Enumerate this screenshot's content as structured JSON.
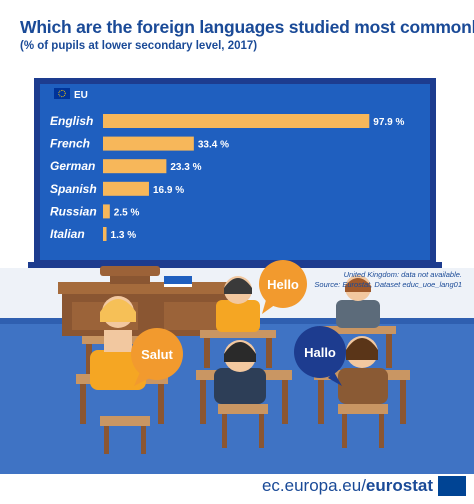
{
  "title": "Which are the foreign languages studied most commonly?",
  "subtitle": "(% of pupils at lower secondary level, 2017)",
  "legend_label": "EU",
  "notes": {
    "line1": "United Kingdom: data not available.",
    "line2": "Source: Eurostat, Dataset educ_uoe_lang01"
  },
  "speech_bubbles": {
    "hello": "Hello",
    "salut": "Salut",
    "hallo": "Hallo"
  },
  "footer": {
    "url_prefix": "ec.europa.eu/",
    "brand": "eurostat"
  },
  "colors": {
    "navy": "#1d3c8f",
    "board_blue": "#1f5fbf",
    "bar": "#f7b75a",
    "orange_bubble": "#f29a2e",
    "brand_blue": "#1a4a97"
  },
  "chart_data": {
    "type": "bar",
    "orientation": "horizontal",
    "categories": [
      "English",
      "French",
      "German",
      "Spanish",
      "Russian",
      "Italian"
    ],
    "values": [
      97.9,
      33.4,
      23.3,
      16.9,
      2.5,
      1.3
    ],
    "value_labels": [
      "97.9 %",
      "33.4 %",
      "23.3 %",
      "16.9 %",
      "2.5 %",
      "1.3 %"
    ],
    "series": [
      {
        "name": "EU",
        "values": [
          97.9,
          33.4,
          23.3,
          16.9,
          2.5,
          1.3
        ]
      }
    ],
    "xlim": [
      0,
      100
    ],
    "grid": false,
    "legend_position": "top-left"
  }
}
